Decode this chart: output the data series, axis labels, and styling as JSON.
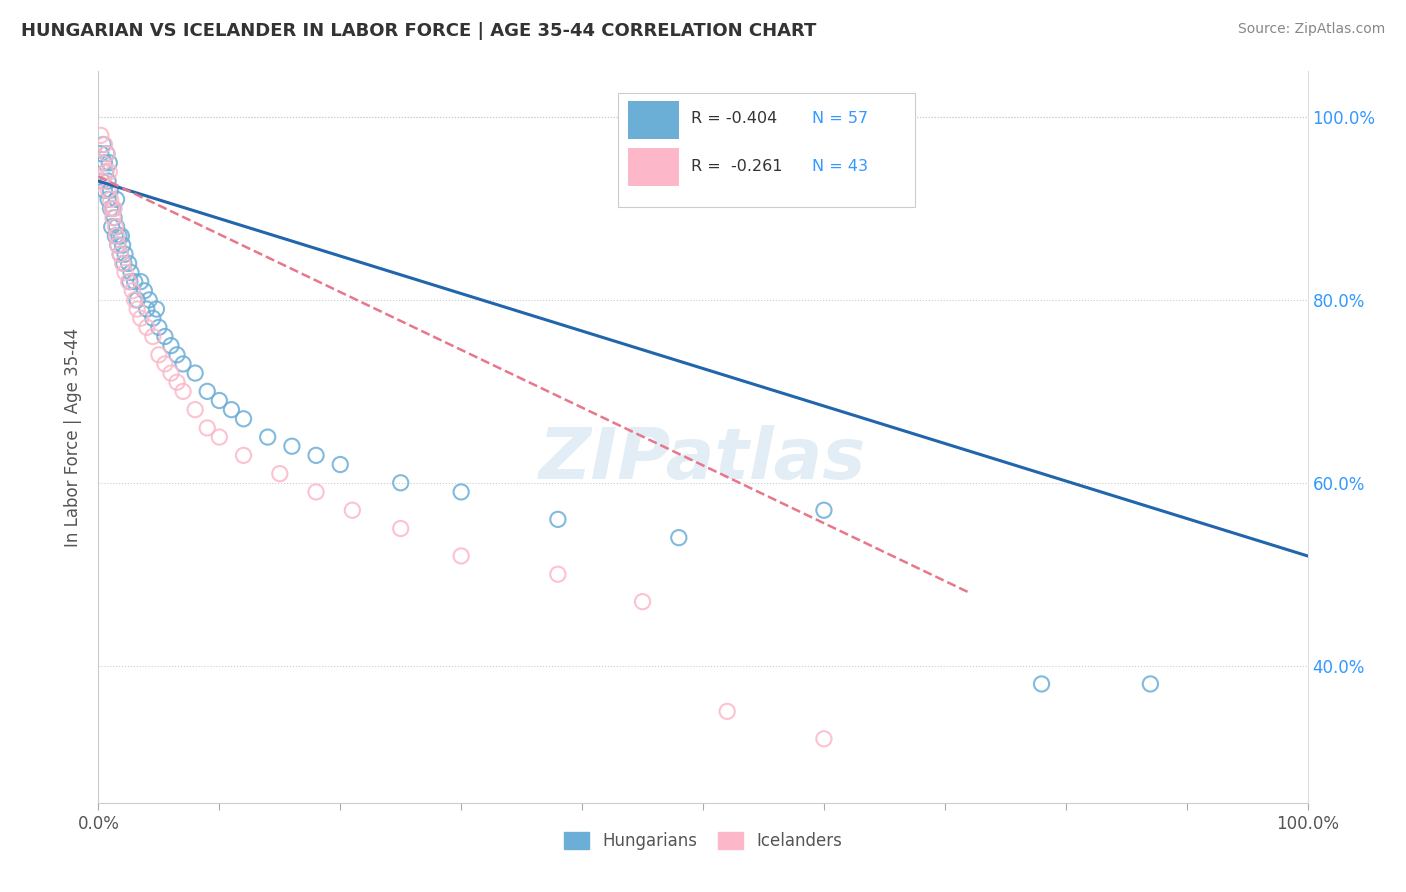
{
  "title": "HUNGARIAN VS ICELANDER IN LABOR FORCE | AGE 35-44 CORRELATION CHART",
  "source": "Source: ZipAtlas.com",
  "ylabel": "In Labor Force | Age 35-44",
  "xlim": [
    0.0,
    1.0
  ],
  "ylim": [
    0.25,
    1.05
  ],
  "x_tick_positions": [
    0.0,
    0.1,
    0.2,
    0.3,
    0.4,
    0.5,
    0.6,
    0.7,
    0.8,
    0.9,
    1.0
  ],
  "x_tick_labels": [
    "0.0%",
    "",
    "",
    "",
    "",
    "",
    "",
    "",
    "",
    "",
    "100.0%"
  ],
  "y_tick_labels": [
    "40.0%",
    "60.0%",
    "80.0%",
    "100.0%"
  ],
  "y_ticks": [
    0.4,
    0.6,
    0.8,
    1.0
  ],
  "hungarian_color": "#6baed6",
  "icelander_color": "#fcb8c8",
  "hungarian_line_color": "#2166ac",
  "icelander_line_color": "#e8778a",
  "R_hungarian": -0.404,
  "N_hungarian": 57,
  "R_icelander": -0.261,
  "N_icelander": 43,
  "watermark": "ZIPatlas",
  "hungarian_x": [
    0.002,
    0.003,
    0.004,
    0.005,
    0.005,
    0.006,
    0.007,
    0.008,
    0.008,
    0.009,
    0.01,
    0.01,
    0.011,
    0.012,
    0.013,
    0.014,
    0.015,
    0.015,
    0.016,
    0.017,
    0.018,
    0.019,
    0.02,
    0.021,
    0.022,
    0.025,
    0.026,
    0.027,
    0.03,
    0.032,
    0.035,
    0.038,
    0.04,
    0.042,
    0.045,
    0.048,
    0.05,
    0.055,
    0.06,
    0.065,
    0.07,
    0.08,
    0.09,
    0.1,
    0.11,
    0.12,
    0.14,
    0.16,
    0.18,
    0.2,
    0.25,
    0.3,
    0.38,
    0.48,
    0.6,
    0.78,
    0.87
  ],
  "hungarian_y": [
    0.96,
    0.93,
    0.97,
    0.95,
    0.92,
    0.94,
    0.96,
    0.91,
    0.93,
    0.95,
    0.9,
    0.92,
    0.88,
    0.9,
    0.89,
    0.87,
    0.88,
    0.91,
    0.86,
    0.87,
    0.85,
    0.87,
    0.86,
    0.84,
    0.85,
    0.84,
    0.82,
    0.83,
    0.82,
    0.8,
    0.82,
    0.81,
    0.79,
    0.8,
    0.78,
    0.79,
    0.77,
    0.76,
    0.75,
    0.74,
    0.73,
    0.72,
    0.7,
    0.69,
    0.68,
    0.67,
    0.65,
    0.64,
    0.63,
    0.62,
    0.6,
    0.59,
    0.56,
    0.54,
    0.57,
    0.38,
    0.38
  ],
  "icelander_x": [
    0.002,
    0.003,
    0.004,
    0.005,
    0.006,
    0.007,
    0.008,
    0.009,
    0.01,
    0.011,
    0.012,
    0.013,
    0.014,
    0.015,
    0.016,
    0.018,
    0.02,
    0.022,
    0.025,
    0.028,
    0.03,
    0.032,
    0.035,
    0.04,
    0.045,
    0.05,
    0.055,
    0.06,
    0.065,
    0.07,
    0.08,
    0.09,
    0.1,
    0.12,
    0.15,
    0.18,
    0.21,
    0.25,
    0.3,
    0.38,
    0.45,
    0.52,
    0.6
  ],
  "icelander_y": [
    0.98,
    0.95,
    0.93,
    0.97,
    0.94,
    0.96,
    0.92,
    0.94,
    0.91,
    0.9,
    0.89,
    0.9,
    0.88,
    0.87,
    0.86,
    0.85,
    0.84,
    0.83,
    0.82,
    0.81,
    0.8,
    0.79,
    0.78,
    0.77,
    0.76,
    0.74,
    0.73,
    0.72,
    0.71,
    0.7,
    0.68,
    0.66,
    0.65,
    0.63,
    0.61,
    0.59,
    0.57,
    0.55,
    0.52,
    0.5,
    0.47,
    0.35,
    0.32
  ],
  "hun_line_x0": 0.0,
  "hun_line_x1": 1.0,
  "hun_line_y0": 0.93,
  "hun_line_y1": 0.52,
  "ice_line_x0": 0.0,
  "ice_line_x1": 0.72,
  "ice_line_y0": 0.935,
  "ice_line_y1": 0.48
}
